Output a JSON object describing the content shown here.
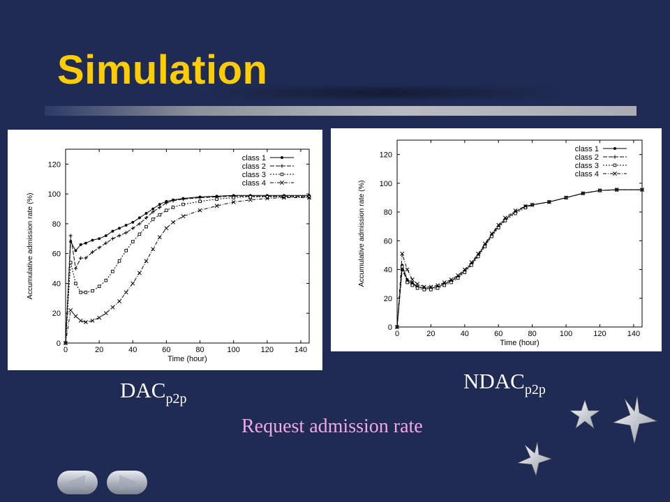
{
  "slide": {
    "title": "Simulation",
    "caption_left_main": "DAC",
    "caption_left_sub": "p2p",
    "caption_right_main": "NDAC",
    "caption_right_sub": "p2p",
    "subtitle": "Request admission rate"
  },
  "colors": {
    "background": "#1f2b52",
    "title": "#ffcc00",
    "subtitle": "#f0a8e8"
  },
  "icons": [
    "star-icon",
    "star-icon",
    "star-icon",
    "prev-arrow-icon",
    "next-arrow-icon"
  ],
  "chart_data": [
    {
      "type": "line",
      "xlabel": "Time (hour)",
      "ylabel": "Accumulative admission rate (%)",
      "xlim": [
        0,
        145
      ],
      "ylim": [
        0,
        130
      ],
      "xticks": [
        0,
        20,
        40,
        60,
        80,
        100,
        120,
        140
      ],
      "yticks": [
        0,
        20,
        40,
        60,
        80,
        100,
        120
      ],
      "legend_position": "top-right",
      "series": [
        {
          "name": "class 1",
          "marker": "dot",
          "x": [
            0,
            3,
            6,
            9,
            12,
            16,
            20,
            24,
            28,
            32,
            36,
            40,
            44,
            48,
            52,
            56,
            60,
            64,
            70,
            80,
            90,
            100,
            110,
            120,
            130,
            145
          ],
          "y": [
            0,
            68,
            62,
            66,
            67,
            69,
            70,
            72,
            75,
            77,
            79,
            81,
            84,
            87,
            90,
            93,
            95,
            96,
            97,
            98,
            98.5,
            99,
            99,
            99,
            99,
            99
          ]
        },
        {
          "name": "class 2",
          "marker": "plus",
          "x": [
            0,
            3,
            6,
            9,
            12,
            16,
            20,
            24,
            28,
            32,
            36,
            40,
            44,
            48,
            52,
            56,
            60,
            64,
            70,
            80,
            90,
            100,
            110,
            120,
            130,
            145
          ],
          "y": [
            0,
            72,
            50,
            57,
            57,
            61,
            64,
            67,
            70,
            72,
            74,
            77,
            80,
            84,
            88,
            91,
            94,
            95.5,
            96.5,
            97.5,
            98,
            98.5,
            98.5,
            98.5,
            98.5,
            98.5
          ]
        },
        {
          "name": "class 3",
          "marker": "square",
          "x": [
            0,
            3,
            6,
            9,
            12,
            16,
            20,
            24,
            28,
            32,
            36,
            40,
            44,
            48,
            52,
            56,
            60,
            64,
            70,
            80,
            90,
            100,
            110,
            120,
            130,
            145
          ],
          "y": [
            0,
            54,
            40,
            34,
            34,
            35,
            38,
            42,
            48,
            55,
            62,
            68,
            73,
            78,
            83,
            86,
            89,
            91,
            93,
            95,
            96.5,
            97.5,
            98,
            98,
            98,
            98
          ]
        },
        {
          "name": "class 4",
          "marker": "cross",
          "x": [
            0,
            3,
            6,
            9,
            12,
            16,
            20,
            24,
            28,
            32,
            36,
            40,
            44,
            48,
            52,
            56,
            60,
            64,
            70,
            80,
            90,
            100,
            110,
            120,
            130,
            145
          ],
          "y": [
            0,
            22,
            18,
            15,
            14,
            15,
            17,
            20,
            24,
            28,
            34,
            40,
            47,
            55,
            63,
            71,
            77,
            81,
            85,
            89,
            92,
            94.5,
            96,
            97,
            97.5,
            97.5
          ]
        }
      ]
    },
    {
      "type": "line",
      "xlabel": "Time (hour)",
      "ylabel": "Accumulative admission rate (%)",
      "xlim": [
        0,
        145
      ],
      "ylim": [
        0,
        130
      ],
      "xticks": [
        0,
        20,
        40,
        60,
        80,
        100,
        120,
        140
      ],
      "yticks": [
        0,
        20,
        40,
        60,
        80,
        100,
        120
      ],
      "legend_position": "top-right",
      "series": [
        {
          "name": "class 1",
          "marker": "dot",
          "x": [
            0,
            3,
            6,
            9,
            12,
            16,
            20,
            24,
            28,
            32,
            36,
            40,
            44,
            48,
            52,
            56,
            60,
            64,
            70,
            76,
            80,
            90,
            100,
            110,
            120,
            130,
            145
          ],
          "y": [
            0,
            43,
            33,
            31,
            28,
            27,
            27,
            28,
            30,
            32,
            35,
            39,
            44,
            50,
            57,
            64,
            70,
            75,
            80,
            84,
            85,
            87,
            90,
            93,
            95,
            95.5,
            95.5
          ]
        },
        {
          "name": "class 2",
          "marker": "plus",
          "x": [
            0,
            3,
            6,
            9,
            12,
            16,
            20,
            24,
            28,
            32,
            36,
            40,
            44,
            48,
            52,
            56,
            60,
            64,
            70,
            76,
            80,
            90,
            100,
            110,
            120,
            130,
            145
          ],
          "y": [
            0,
            40,
            32,
            30,
            28,
            27,
            27,
            28,
            30,
            32,
            35,
            39,
            44,
            50,
            57,
            64,
            70,
            75,
            80,
            84,
            85,
            87,
            90,
            93,
            95,
            95.5,
            95.5
          ]
        },
        {
          "name": "class 3",
          "marker": "square",
          "x": [
            0,
            3,
            6,
            9,
            12,
            16,
            20,
            24,
            28,
            32,
            36,
            40,
            44,
            48,
            52,
            56,
            60,
            64,
            70,
            76,
            80,
            90,
            100,
            110,
            120,
            130,
            145
          ],
          "y": [
            0,
            42,
            31,
            29,
            27,
            26,
            26,
            27,
            29,
            31,
            34,
            38,
            43,
            49,
            56,
            63,
            69,
            74,
            79,
            83,
            85,
            87,
            90,
            93,
            95,
            95.5,
            95.5
          ]
        },
        {
          "name": "class 4",
          "marker": "cross",
          "x": [
            0,
            3,
            6,
            9,
            12,
            16,
            20,
            24,
            28,
            32,
            36,
            40,
            44,
            48,
            52,
            56,
            60,
            64,
            70,
            76,
            80,
            90,
            100,
            110,
            120,
            130,
            145
          ],
          "y": [
            0,
            51,
            40,
            33,
            30,
            28,
            28,
            29,
            31,
            33,
            36,
            40,
            45,
            51,
            58,
            65,
            71,
            76,
            81,
            84,
            85,
            87,
            90,
            93,
            95,
            95.5,
            95.5
          ]
        }
      ]
    }
  ]
}
